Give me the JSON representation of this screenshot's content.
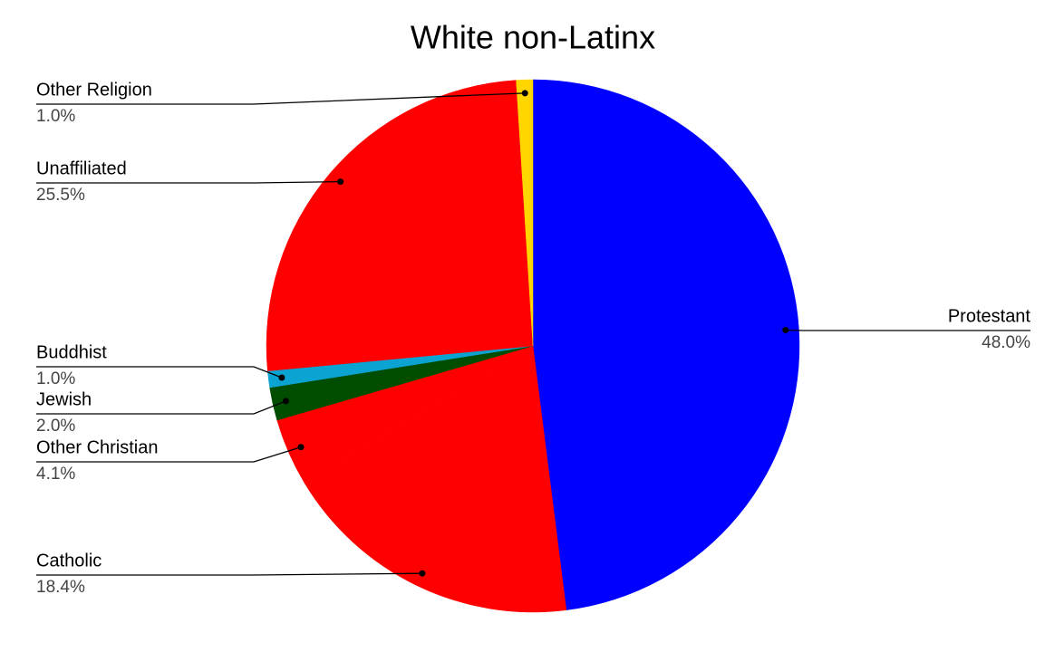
{
  "chart_data": {
    "type": "pie",
    "title": "White non-Latinx",
    "categories": [
      "Protestant",
      "Catholic",
      "Other Christian",
      "Jewish",
      "Buddhist",
      "Unaffiliated",
      "Other Religion"
    ],
    "values": [
      48.0,
      18.4,
      4.1,
      2.0,
      1.0,
      25.5,
      1.0
    ],
    "value_labels": [
      "48.0%",
      "18.4%",
      "4.1%",
      "2.0%",
      "1.0%",
      "25.5%",
      "1.0%"
    ],
    "colors": [
      "#0000ff",
      "#ff0000",
      "#ff0000",
      "#004d00",
      "#0aa3d2",
      "#ff0000",
      "#ffd700"
    ]
  }
}
